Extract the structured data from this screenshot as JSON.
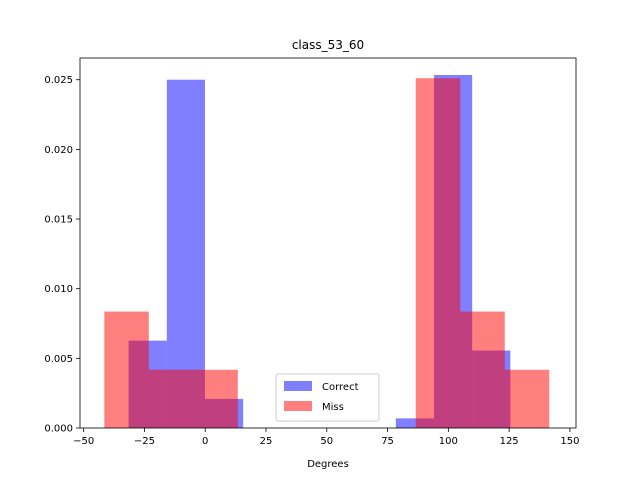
{
  "chart_data": {
    "type": "bar",
    "title": "class_53_60",
    "xlabel": "Degrees",
    "ylabel": "",
    "xlim": [
      -51.5,
      152.5
    ],
    "ylim": [
      0,
      0.02656
    ],
    "xticks": [
      -50,
      -25,
      0,
      25,
      50,
      75,
      100,
      125,
      150
    ],
    "xtick_labels": [
      "−50",
      "−25",
      "0",
      "25",
      "50",
      "75",
      "100",
      "125",
      "150"
    ],
    "yticks": [
      0,
      0.005,
      0.01,
      0.015,
      0.02,
      0.025
    ],
    "ytick_labels": [
      "0.000",
      "0.005",
      "0.010",
      "0.015",
      "0.020",
      "0.025"
    ],
    "legend_position": "lower-center",
    "series": [
      {
        "name": "Correct",
        "color": "#0000ff",
        "bin_edges": [
          -31.5,
          -15.8,
          -0.1,
          15.6,
          31.3,
          47.0,
          62.7,
          78.4,
          94.1,
          109.8,
          125.5
        ],
        "values": [
          0.00627,
          0.025,
          0.00209,
          0,
          0,
          0,
          0,
          0.00069,
          0.02534,
          0.00556
        ]
      },
      {
        "name": "Miss",
        "color": "#ff0000",
        "bin_edges": [
          -41.5,
          -23.2,
          -4.9,
          13.4,
          31.7,
          50.0,
          68.3,
          86.6,
          104.9,
          123.2,
          141.5
        ],
        "values": [
          0.00836,
          0.00418,
          0.00418,
          0,
          0,
          0,
          0,
          0.02511,
          0.00836,
          0.00418
        ]
      }
    ]
  }
}
